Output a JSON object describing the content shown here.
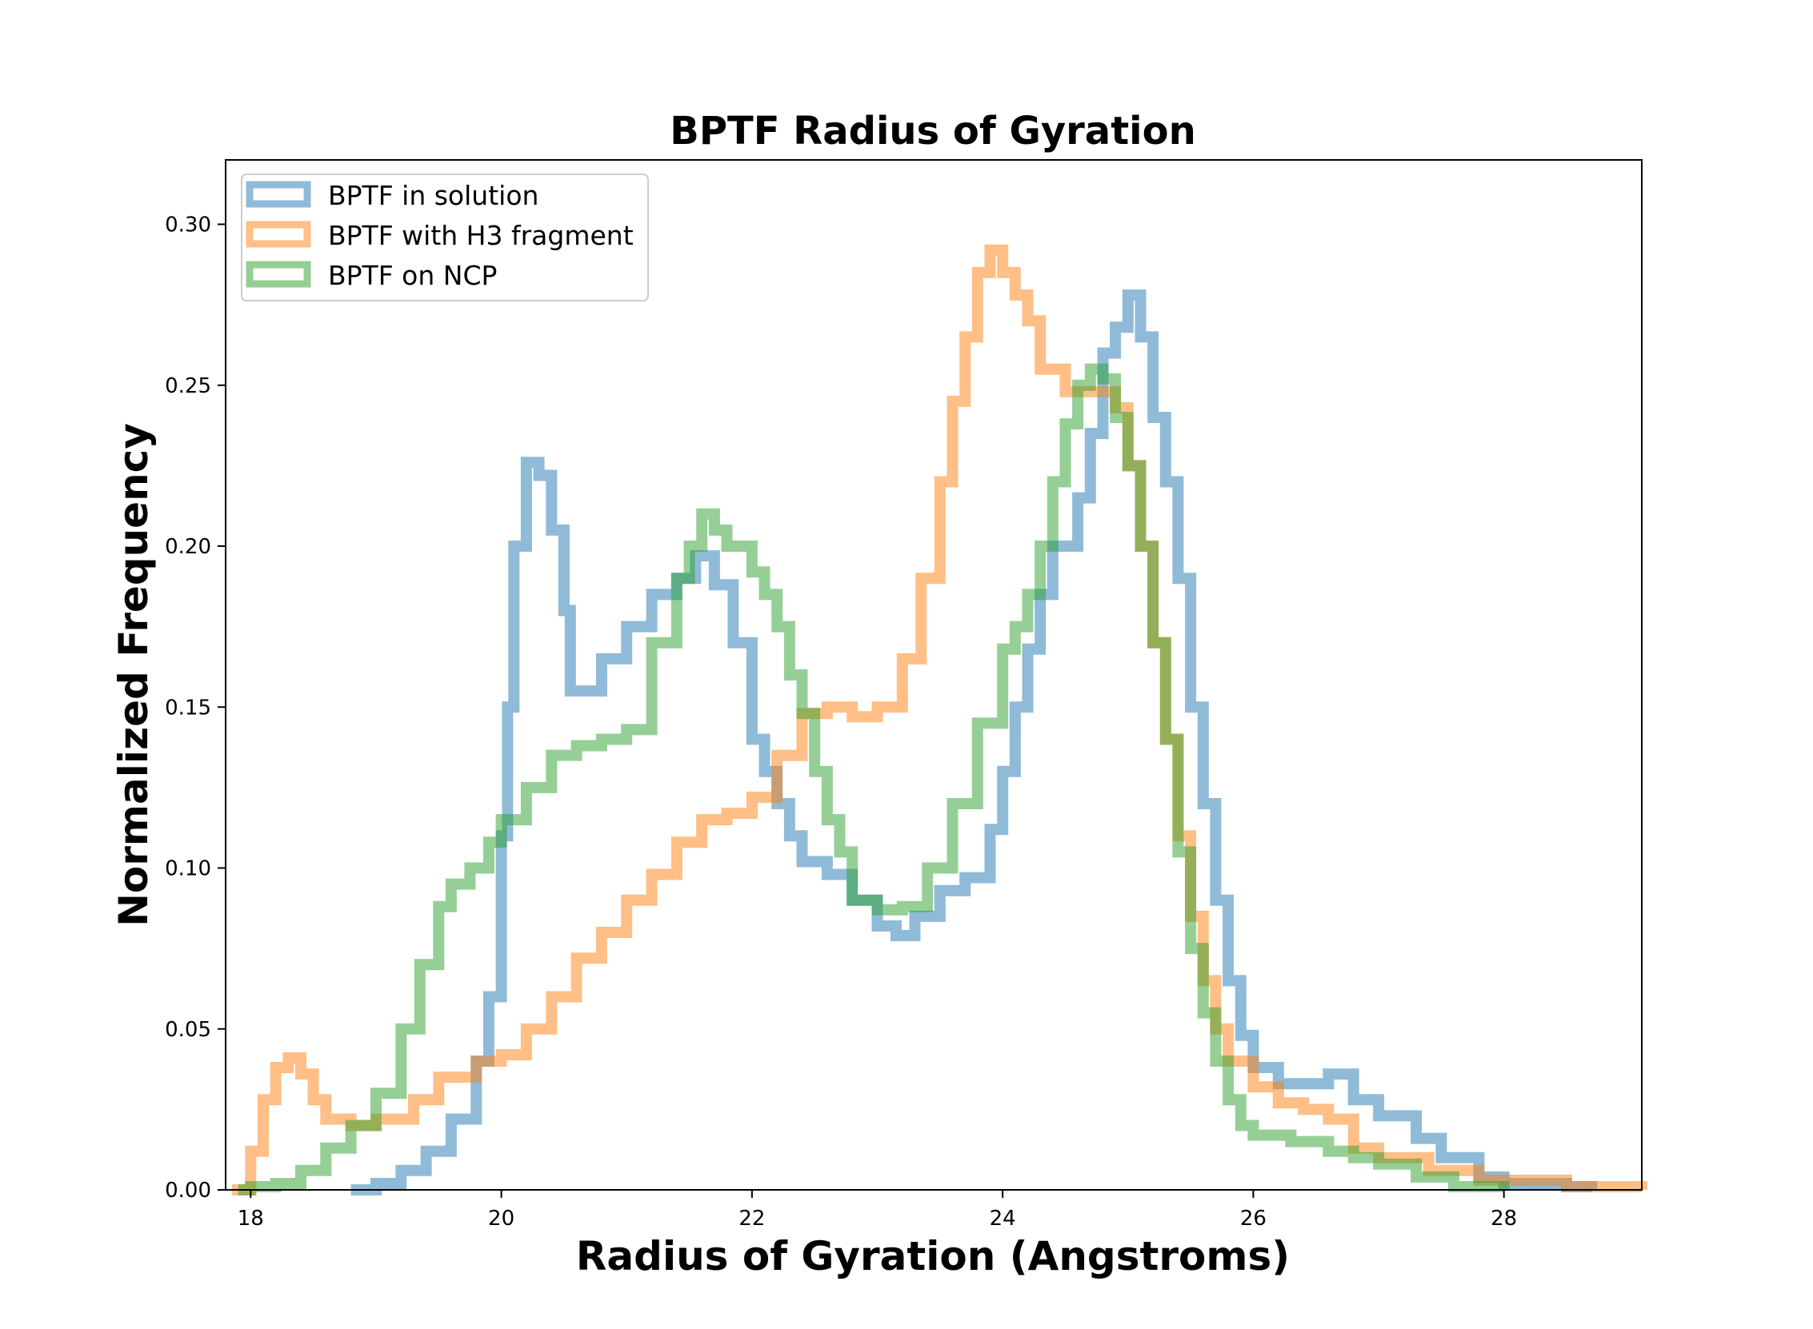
{
  "chart_data": {
    "type": "histogram-step",
    "title": "BPTF Radius of Gyration",
    "xlabel": "Radius of Gyration (Angstroms)",
    "ylabel": "Normalized Frequency",
    "xlim": [
      17.8,
      29.1
    ],
    "ylim": [
      0.0,
      0.32
    ],
    "xticks": [
      18,
      20,
      22,
      24,
      26,
      28
    ],
    "xtick_labels": [
      "18",
      "20",
      "22",
      "24",
      "26",
      "28"
    ],
    "yticks": [
      0.0,
      0.05,
      0.1,
      0.15,
      0.2,
      0.25,
      0.3
    ],
    "ytick_labels": [
      "0.00",
      "0.05",
      "0.10",
      "0.15",
      "0.20",
      "0.25",
      "0.30"
    ],
    "legend_position": "upper-left",
    "grid": false,
    "series": [
      {
        "name": "BPTF in solution",
        "color": "#1f77b4",
        "alpha": 0.5,
        "points": [
          [
            18.8,
            0.0
          ],
          [
            19.0,
            0.002
          ],
          [
            19.2,
            0.006
          ],
          [
            19.4,
            0.012
          ],
          [
            19.6,
            0.022
          ],
          [
            19.8,
            0.04
          ],
          [
            19.9,
            0.06
          ],
          [
            20.0,
            0.11
          ],
          [
            20.05,
            0.15
          ],
          [
            20.1,
            0.2
          ],
          [
            20.2,
            0.226
          ],
          [
            20.3,
            0.222
          ],
          [
            20.4,
            0.205
          ],
          [
            20.5,
            0.18
          ],
          [
            20.55,
            0.155
          ],
          [
            20.7,
            0.155
          ],
          [
            20.8,
            0.165
          ],
          [
            21.0,
            0.175
          ],
          [
            21.2,
            0.185
          ],
          [
            21.4,
            0.19
          ],
          [
            21.55,
            0.197
          ],
          [
            21.7,
            0.188
          ],
          [
            21.85,
            0.17
          ],
          [
            22.0,
            0.14
          ],
          [
            22.1,
            0.13
          ],
          [
            22.2,
            0.12
          ],
          [
            22.3,
            0.11
          ],
          [
            22.4,
            0.102
          ],
          [
            22.6,
            0.098
          ],
          [
            22.8,
            0.09
          ],
          [
            23.0,
            0.082
          ],
          [
            23.15,
            0.079
          ],
          [
            23.3,
            0.085
          ],
          [
            23.5,
            0.093
          ],
          [
            23.7,
            0.097
          ],
          [
            23.9,
            0.112
          ],
          [
            24.0,
            0.13
          ],
          [
            24.1,
            0.15
          ],
          [
            24.2,
            0.168
          ],
          [
            24.3,
            0.185
          ],
          [
            24.4,
            0.2
          ],
          [
            24.6,
            0.215
          ],
          [
            24.7,
            0.235
          ],
          [
            24.8,
            0.26
          ],
          [
            24.9,
            0.268
          ],
          [
            25.0,
            0.278
          ],
          [
            25.1,
            0.265
          ],
          [
            25.2,
            0.24
          ],
          [
            25.3,
            0.22
          ],
          [
            25.4,
            0.19
          ],
          [
            25.5,
            0.15
          ],
          [
            25.6,
            0.12
          ],
          [
            25.7,
            0.09
          ],
          [
            25.8,
            0.065
          ],
          [
            25.9,
            0.048
          ],
          [
            26.0,
            0.038
          ],
          [
            26.2,
            0.033
          ],
          [
            26.4,
            0.033
          ],
          [
            26.6,
            0.036
          ],
          [
            26.8,
            0.028
          ],
          [
            27.0,
            0.023
          ],
          [
            27.3,
            0.016
          ],
          [
            27.5,
            0.01
          ],
          [
            27.8,
            0.004
          ],
          [
            28.0,
            0.002
          ],
          [
            28.5,
            0.001
          ],
          [
            28.7,
            0.0
          ]
        ]
      },
      {
        "name": "BPTF with H3 fragment",
        "color": "#ff7f0e",
        "alpha": 0.5,
        "points": [
          [
            17.85,
            0.0
          ],
          [
            18.0,
            0.012
          ],
          [
            18.1,
            0.028
          ],
          [
            18.2,
            0.038
          ],
          [
            18.3,
            0.041
          ],
          [
            18.4,
            0.036
          ],
          [
            18.5,
            0.028
          ],
          [
            18.6,
            0.022
          ],
          [
            18.8,
            0.02
          ],
          [
            19.0,
            0.022
          ],
          [
            19.3,
            0.028
          ],
          [
            19.5,
            0.035
          ],
          [
            19.8,
            0.04
          ],
          [
            20.0,
            0.042
          ],
          [
            20.2,
            0.05
          ],
          [
            20.4,
            0.06
          ],
          [
            20.6,
            0.072
          ],
          [
            20.8,
            0.08
          ],
          [
            21.0,
            0.09
          ],
          [
            21.2,
            0.098
          ],
          [
            21.4,
            0.108
          ],
          [
            21.6,
            0.115
          ],
          [
            21.8,
            0.117
          ],
          [
            22.0,
            0.122
          ],
          [
            22.2,
            0.135
          ],
          [
            22.4,
            0.148
          ],
          [
            22.6,
            0.15
          ],
          [
            22.8,
            0.147
          ],
          [
            23.0,
            0.15
          ],
          [
            23.2,
            0.165
          ],
          [
            23.35,
            0.19
          ],
          [
            23.5,
            0.22
          ],
          [
            23.6,
            0.245
          ],
          [
            23.7,
            0.265
          ],
          [
            23.8,
            0.285
          ],
          [
            23.9,
            0.292
          ],
          [
            24.0,
            0.285
          ],
          [
            24.1,
            0.278
          ],
          [
            24.2,
            0.27
          ],
          [
            24.3,
            0.255
          ],
          [
            24.5,
            0.248
          ],
          [
            24.7,
            0.248
          ],
          [
            24.9,
            0.243
          ],
          [
            25.0,
            0.225
          ],
          [
            25.1,
            0.2
          ],
          [
            25.2,
            0.17
          ],
          [
            25.3,
            0.14
          ],
          [
            25.4,
            0.11
          ],
          [
            25.5,
            0.085
          ],
          [
            25.6,
            0.065
          ],
          [
            25.7,
            0.05
          ],
          [
            25.8,
            0.04
          ],
          [
            26.0,
            0.032
          ],
          [
            26.2,
            0.027
          ],
          [
            26.4,
            0.025
          ],
          [
            26.6,
            0.022
          ],
          [
            26.8,
            0.013
          ],
          [
            27.0,
            0.01
          ],
          [
            27.4,
            0.006
          ],
          [
            27.8,
            0.003
          ],
          [
            28.5,
            0.001
          ],
          [
            29.1,
            0.0
          ]
        ]
      },
      {
        "name": "BPTF on NCP",
        "color": "#2ca02c",
        "alpha": 0.5,
        "points": [
          [
            17.9,
            0.0
          ],
          [
            18.0,
            0.001
          ],
          [
            18.2,
            0.002
          ],
          [
            18.4,
            0.006
          ],
          [
            18.6,
            0.013
          ],
          [
            18.8,
            0.02
          ],
          [
            19.0,
            0.03
          ],
          [
            19.2,
            0.05
          ],
          [
            19.35,
            0.07
          ],
          [
            19.5,
            0.088
          ],
          [
            19.6,
            0.095
          ],
          [
            19.75,
            0.1
          ],
          [
            19.9,
            0.108
          ],
          [
            20.0,
            0.115
          ],
          [
            20.2,
            0.125
          ],
          [
            20.4,
            0.135
          ],
          [
            20.6,
            0.138
          ],
          [
            20.8,
            0.14
          ],
          [
            21.0,
            0.143
          ],
          [
            21.2,
            0.17
          ],
          [
            21.4,
            0.19
          ],
          [
            21.5,
            0.2
          ],
          [
            21.6,
            0.21
          ],
          [
            21.7,
            0.205
          ],
          [
            21.8,
            0.2
          ],
          [
            22.0,
            0.192
          ],
          [
            22.1,
            0.185
          ],
          [
            22.2,
            0.175
          ],
          [
            22.3,
            0.16
          ],
          [
            22.4,
            0.148
          ],
          [
            22.5,
            0.13
          ],
          [
            22.6,
            0.115
          ],
          [
            22.7,
            0.105
          ],
          [
            22.8,
            0.09
          ],
          [
            23.0,
            0.087
          ],
          [
            23.2,
            0.088
          ],
          [
            23.4,
            0.1
          ],
          [
            23.6,
            0.12
          ],
          [
            23.8,
            0.145
          ],
          [
            24.0,
            0.168
          ],
          [
            24.1,
            0.175
          ],
          [
            24.2,
            0.185
          ],
          [
            24.3,
            0.2
          ],
          [
            24.4,
            0.22
          ],
          [
            24.5,
            0.238
          ],
          [
            24.6,
            0.25
          ],
          [
            24.7,
            0.255
          ],
          [
            24.8,
            0.252
          ],
          [
            24.9,
            0.24
          ],
          [
            25.0,
            0.225
          ],
          [
            25.1,
            0.2
          ],
          [
            25.2,
            0.17
          ],
          [
            25.3,
            0.14
          ],
          [
            25.4,
            0.105
          ],
          [
            25.5,
            0.075
          ],
          [
            25.6,
            0.055
          ],
          [
            25.7,
            0.04
          ],
          [
            25.8,
            0.028
          ],
          [
            25.9,
            0.02
          ],
          [
            26.0,
            0.017
          ],
          [
            26.3,
            0.015
          ],
          [
            26.6,
            0.012
          ],
          [
            26.8,
            0.01
          ],
          [
            27.0,
            0.008
          ],
          [
            27.3,
            0.004
          ],
          [
            27.6,
            0.001
          ],
          [
            28.0,
            0.0
          ]
        ]
      }
    ]
  }
}
